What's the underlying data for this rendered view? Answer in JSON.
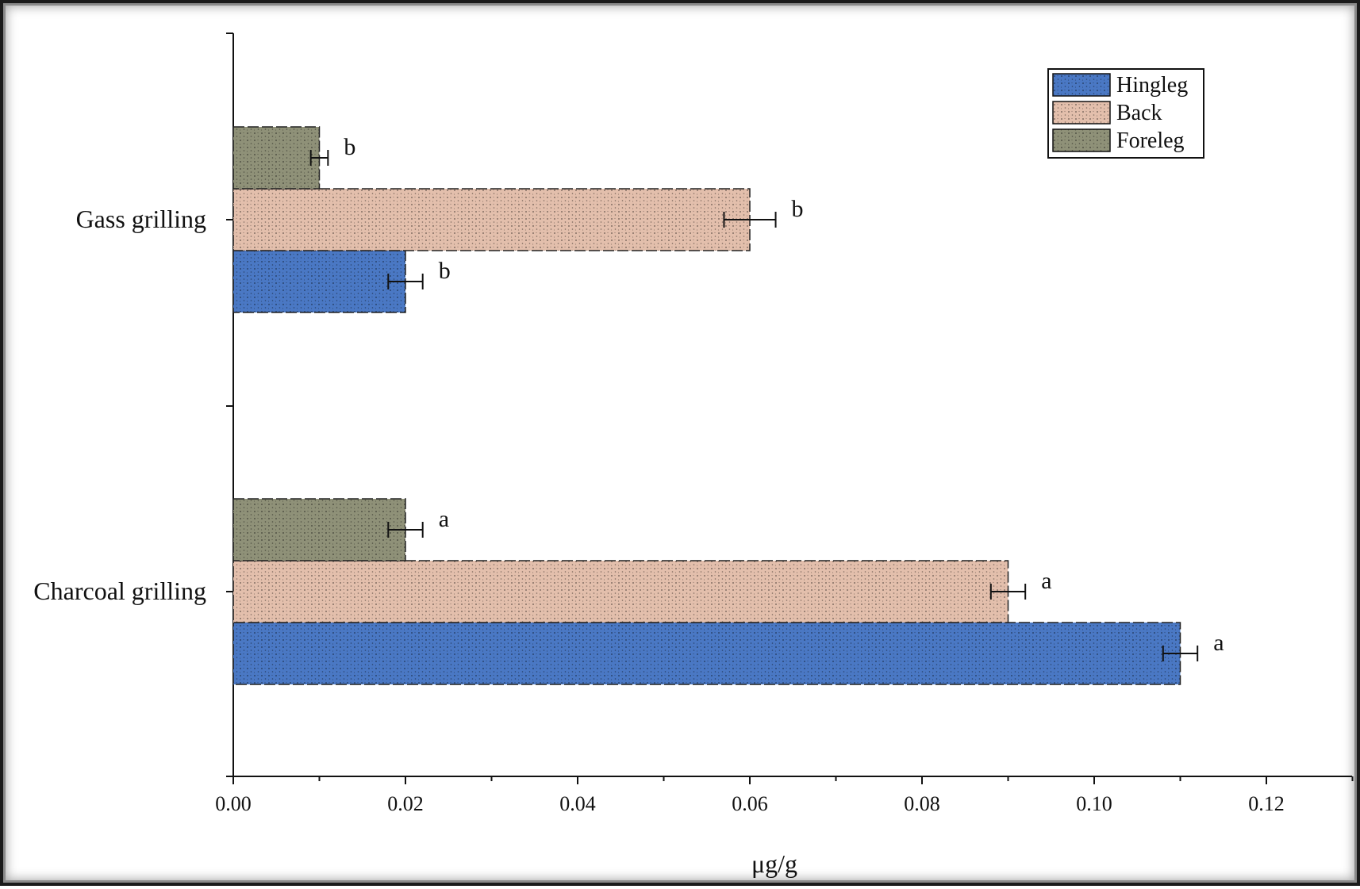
{
  "chart_data": {
    "type": "bar",
    "orientation": "horizontal",
    "categories": [
      "Charcoal grilling",
      "Gass grilling"
    ],
    "series": [
      {
        "name": "Hingleg",
        "color": "#4a78c4",
        "values": [
          0.11,
          0.02
        ],
        "errors": [
          0.002,
          0.002
        ],
        "labels": [
          "a",
          "b"
        ]
      },
      {
        "name": "Back",
        "color": "#e3bfac",
        "values": [
          0.09,
          0.06
        ],
        "errors": [
          0.002,
          0.003
        ],
        "labels": [
          "a",
          "b"
        ]
      },
      {
        "name": "Foreleg",
        "color": "#8f9178",
        "values": [
          0.02,
          0.01
        ],
        "errors": [
          0.002,
          0.001
        ],
        "labels": [
          "a",
          "b"
        ]
      }
    ],
    "xlabel": "μg/g",
    "ylabel": "",
    "xlim": [
      0,
      0.13
    ],
    "xticks": [
      "0.00",
      "0.02",
      "0.04",
      "0.06",
      "0.08",
      "0.10",
      "0.12"
    ],
    "grid": false,
    "legend_position": "top-right"
  }
}
